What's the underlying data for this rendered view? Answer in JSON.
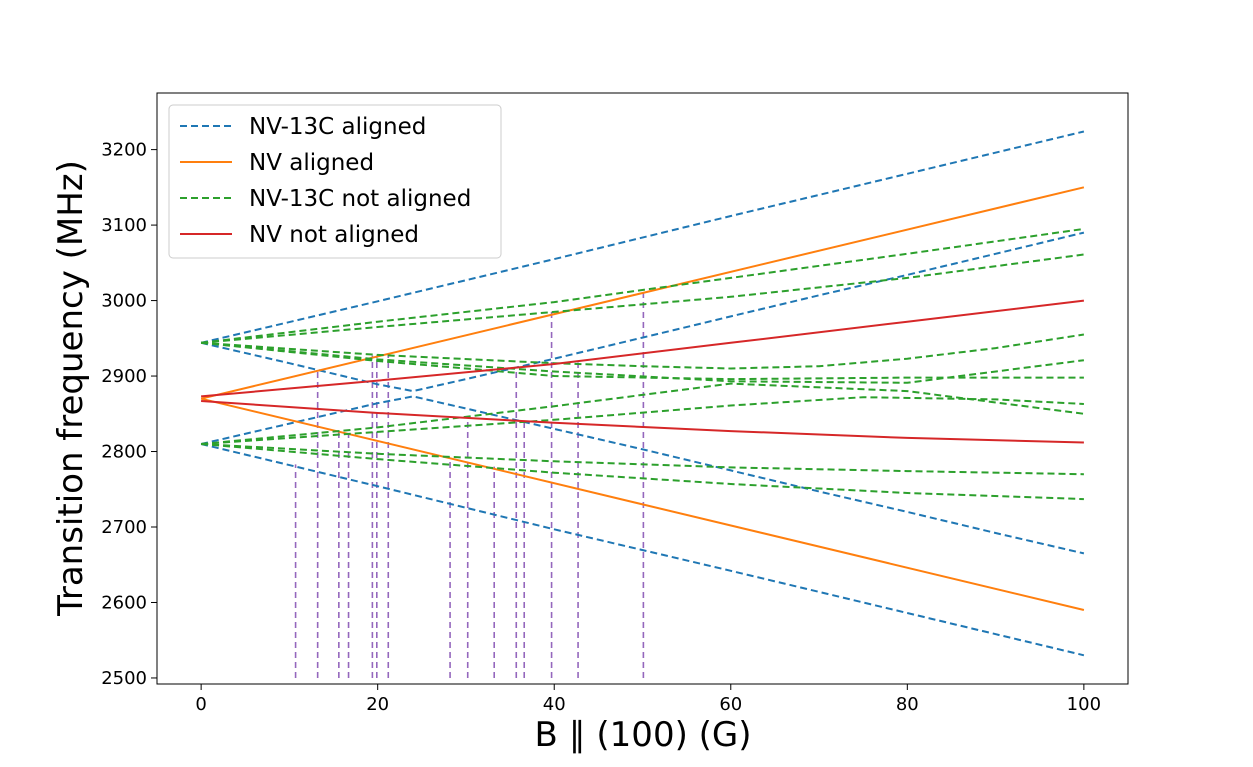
{
  "chart_data": {
    "type": "line",
    "title": "",
    "xlabel": "B ∥ (100) (G)",
    "ylabel": "Transition frequency (MHz)",
    "xlim": [
      -5,
      105
    ],
    "ylim": [
      2492,
      3275
    ],
    "xticks": [
      "0",
      "20",
      "40",
      "60",
      "80",
      "100"
    ],
    "yticks": [
      "2500",
      "2600",
      "2700",
      "2800",
      "2900",
      "3000",
      "3100",
      "3200"
    ],
    "grid": false,
    "legend_position": "upper-left",
    "legend": [
      {
        "label": "NV-13C aligned",
        "color": "#1f77b4",
        "dash": "dashed"
      },
      {
        "label": "NV aligned",
        "color": "#ff7f0e",
        "dash": "solid"
      },
      {
        "label": "NV-13C not aligned",
        "color": "#2ca02c",
        "dash": "dashed"
      },
      {
        "label": "NV not aligned",
        "color": "#d62728",
        "dash": "solid"
      }
    ],
    "series": [
      {
        "group": 0,
        "x": [
          0,
          20,
          40,
          60,
          80,
          100
        ],
        "y": [
          2944,
          2999,
          3055,
          3112,
          3168,
          3224
        ]
      },
      {
        "group": 0,
        "x": [
          0,
          20,
          40,
          60,
          80,
          100
        ],
        "y": [
          2810,
          2754,
          2697,
          2642,
          2586,
          2530
        ]
      },
      {
        "group": 0,
        "x": [
          0,
          10,
          20,
          24,
          30,
          40,
          50,
          60,
          70,
          80,
          90,
          100
        ],
        "y": [
          2944,
          2917,
          2889,
          2880,
          2896,
          2923,
          2951,
          2979,
          3007,
          3034,
          3062,
          3090
        ]
      },
      {
        "group": 0,
        "x": [
          0,
          10,
          20,
          24,
          30,
          40,
          50,
          60,
          70,
          80,
          90,
          100
        ],
        "y": [
          2810,
          2837,
          2864,
          2873,
          2857,
          2830,
          2803,
          2775,
          2747,
          2720,
          2692,
          2665
        ]
      },
      {
        "group": 1,
        "x": [
          0,
          100
        ],
        "y": [
          2870,
          3150
        ]
      },
      {
        "group": 1,
        "x": [
          0,
          100
        ],
        "y": [
          2870,
          2590
        ]
      },
      {
        "group": 2,
        "x": [
          0,
          20,
          40,
          60,
          80,
          100
        ],
        "y": [
          2944,
          2972,
          2998,
          3030,
          3062,
          3095
        ]
      },
      {
        "group": 2,
        "x": [
          0,
          20,
          40,
          60,
          80,
          100
        ],
        "y": [
          2944,
          2965,
          2985,
          3005,
          3030,
          3061
        ]
      },
      {
        "group": 2,
        "x": [
          0,
          20,
          40,
          50,
          60,
          70,
          80,
          90,
          100
        ],
        "y": [
          2944,
          2928,
          2917,
          2913,
          2910,
          2913,
          2923,
          2937,
          2955
        ]
      },
      {
        "group": 2,
        "x": [
          0,
          20,
          40,
          60,
          80,
          100
        ],
        "y": [
          2944,
          2922,
          2906,
          2893,
          2891,
          2921
        ]
      },
      {
        "group": 2,
        "x": [
          0,
          20,
          40,
          60,
          80,
          100
        ],
        "y": [
          2944,
          2920,
          2900,
          2896,
          2898,
          2898
        ]
      },
      {
        "group": 2,
        "x": [
          0,
          20,
          40,
          60,
          75,
          90,
          100
        ],
        "y": [
          2810,
          2826,
          2842,
          2861,
          2872,
          2869,
          2863
        ]
      },
      {
        "group": 2,
        "x": [
          0,
          20,
          40,
          60,
          80,
          100
        ],
        "y": [
          2810,
          2832,
          2860,
          2890,
          2880,
          2850
        ]
      },
      {
        "group": 2,
        "x": [
          0,
          20,
          40,
          60,
          80,
          100
        ],
        "y": [
          2810,
          2797,
          2787,
          2779,
          2774,
          2770
        ]
      },
      {
        "group": 2,
        "x": [
          0,
          20,
          40,
          60,
          80,
          100
        ],
        "y": [
          2810,
          2790,
          2772,
          2757,
          2745,
          2737
        ]
      },
      {
        "group": 3,
        "x": [
          0,
          20,
          40,
          60,
          80,
          100
        ],
        "y": [
          2873,
          2894,
          2916,
          2944,
          2972,
          3000
        ]
      },
      {
        "group": 3,
        "x": [
          0,
          20,
          40,
          60,
          80,
          100
        ],
        "y": [
          2867,
          2851,
          2838,
          2827,
          2818,
          2812
        ]
      }
    ],
    "vlines": {
      "color": "#9467bd",
      "bottom": 2500,
      "items": [
        {
          "x": 10.7,
          "top": 2783
        },
        {
          "x": 13.2,
          "top": 2907
        },
        {
          "x": 15.6,
          "top": 2826
        },
        {
          "x": 16.7,
          "top": 2822
        },
        {
          "x": 19.4,
          "top": 2927
        },
        {
          "x": 19.9,
          "top": 2927
        },
        {
          "x": 21.2,
          "top": 2929
        },
        {
          "x": 28.2,
          "top": 2792
        },
        {
          "x": 30.2,
          "top": 2843
        },
        {
          "x": 33.2,
          "top": 2780
        },
        {
          "x": 35.7,
          "top": 2907
        },
        {
          "x": 36.6,
          "top": 2843
        },
        {
          "x": 39.7,
          "top": 2985
        },
        {
          "x": 42.7,
          "top": 2918
        },
        {
          "x": 50.1,
          "top": 3012
        }
      ]
    }
  }
}
